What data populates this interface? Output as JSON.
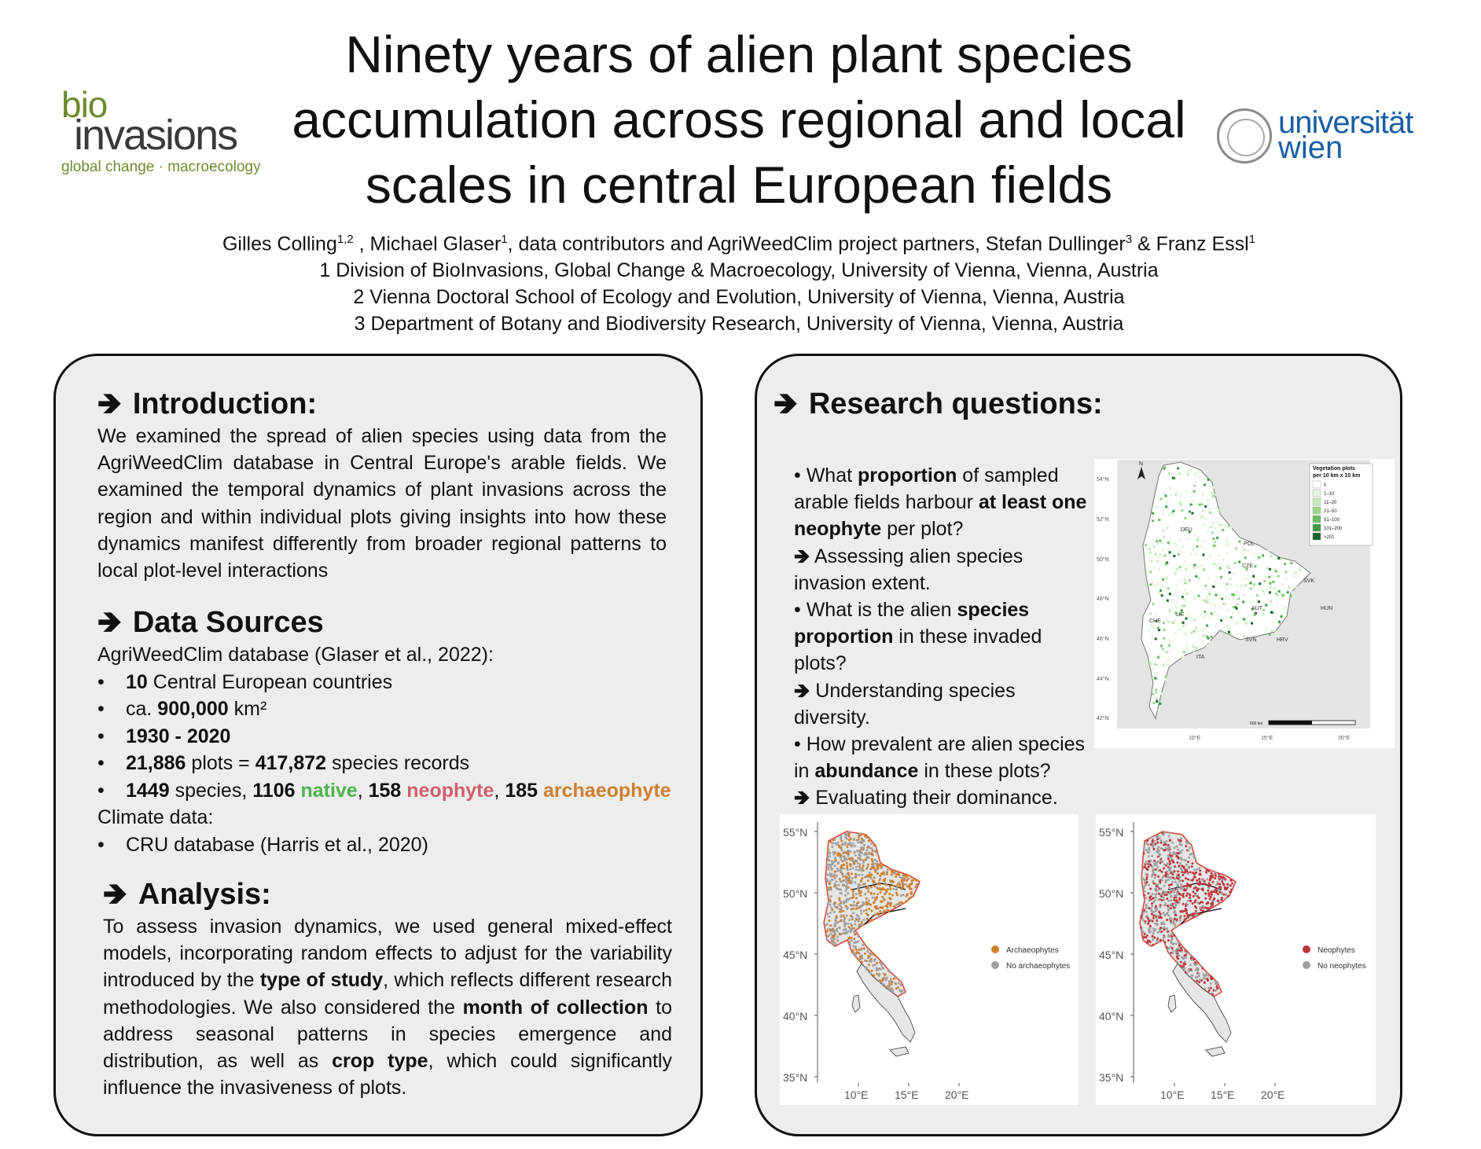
{
  "title_lines": [
    "Ninety years of alien plant species",
    "accumulation across regional and local",
    "scales in central European fields"
  ],
  "authors": {
    "line1_a": "Gilles Colling",
    "line1_sup_a": "1,2",
    "line1_b": " , Michael Glaser",
    "line1_sup_b": "1",
    "line1_c": ", data contributors and AgriWeedClim project partners, Stefan Dullinger",
    "line1_sup_c": "3",
    "line1_d": " & Franz Essl",
    "line1_sup_d": "1",
    "affil1": "1 Division of BioInvasions, Global Change & Macroecology, University of Vienna, Vienna, Austria",
    "affil2": "2 Vienna Doctoral School of Ecology and Evolution, University of Vienna, Vienna, Austria",
    "affil3": "3 Department of Botany and Biodiversity Research, University of Vienna, Vienna, Austria"
  },
  "logos": {
    "bio_top": "bio",
    "bio_main": "invasions",
    "bio_sub": "global change · macroecology",
    "uni_line1": "universität",
    "uni_line2": "wien"
  },
  "introduction": {
    "heading": "Introduction:",
    "text": "We examined the spread of alien species using data from the AgriWeedClim database in Central Europe's arable fields. We examined the temporal dynamics of plant invasions across the region and within individual plots giving insights into how these dynamics manifest differently from broader regional patterns to local plot-level interactions"
  },
  "data_sources": {
    "heading": "Data Sources",
    "db_line": "AgriWeedClim database (Glaser et al., 2022):",
    "b1_bold": "10",
    "b1_rest": " Central European countries",
    "b2_pre": "ca. ",
    "b2_bold": "900,000",
    "b2_rest": " km²",
    "b3_bold": "1930 - 2020",
    "b4_bold1": "21,886",
    "b4_mid": " plots = ",
    "b4_bold2": "417,872",
    "b4_rest": " species records",
    "b5_bold1": "1449",
    "b5_t1": " species, ",
    "b5_bold2": "1106",
    "b5_native": "native",
    "b5_t2": ", ",
    "b5_bold3": "158",
    "b5_neo": "neophyte",
    "b5_t3": ",  ",
    "b5_bold4": "185",
    "b5_arch": "archaeophyte",
    "climate_line": "Climate data:",
    "b6": "CRU database (Harris et al., 2020)"
  },
  "analysis": {
    "heading": "Analysis:",
    "t1": "To assess invasion dynamics, we used general mixed-effect models, incorporating random effects to adjust for the variability introduced by the ",
    "b1": "type of study",
    "t2": ", which reflects different research methodologies. We also considered the ",
    "b2": "month of collection",
    "t3": " to address seasonal patterns in species emergence and distribution, as well as ",
    "b3": "crop type",
    "t4": ", which could significantly influence the invasiveness of plots."
  },
  "research": {
    "heading": "Research questions:",
    "q1_a": "• What ",
    "q1_b": "proportion",
    "q1_c": " of sampled arable fields harbour ",
    "q1_d": "at least one neophyte",
    "q1_e": " per plot?",
    "a1": " Assessing alien species invasion extent.",
    "q2_a": "• What is the alien ",
    "q2_b": "species proportion",
    "q2_c": " in these invaded plots?",
    "a2": " Understanding species diversity.",
    "q3_a": "• How prevalent are alien species in ",
    "q3_b": "abundance",
    "q3_c": " in these plots?",
    "a3": " Evaluating their dominance."
  },
  "map_top": {
    "legend_title": "Vegetation plots per 10 km x 10 km",
    "legend_items": [
      "0",
      "1–10",
      "11–20",
      "21–50",
      "51–100",
      "101–200",
      ">201"
    ],
    "legend_colors": [
      "#ffffff",
      "#e5f4df",
      "#c6e8bc",
      "#9fd68f",
      "#6cbd62",
      "#3b9a45",
      "#17642a"
    ],
    "lat_labels": [
      "54°N",
      "52°N",
      "50°N",
      "48°N",
      "46°N",
      "44°N",
      "42°N"
    ],
    "lon_labels": [
      "10°E",
      "15°E",
      "20°E"
    ],
    "countries": [
      "DEU",
      "POL",
      "CZE",
      "SVK",
      "AUT",
      "HUN",
      "CHE",
      "LIE",
      "SVN",
      "HRV",
      "ITA"
    ],
    "north": "N",
    "scale": "600 km"
  },
  "map_arch": {
    "lat_labels": [
      "55°N",
      "50°N",
      "45°N",
      "40°N",
      "35°N"
    ],
    "lon_labels": [
      "10°E",
      "15°E",
      "20°E"
    ],
    "legend1": "Archaeophytes",
    "legend2": "No archaeophytes",
    "color1": "#cf7f2e",
    "color2": "#a0a0a0"
  },
  "map_neo": {
    "lat_labels": [
      "55°N",
      "50°N",
      "45°N",
      "40°N",
      "35°N"
    ],
    "lon_labels": [
      "10°E",
      "15°E",
      "20°E"
    ],
    "legend1": "Neophytes",
    "legend2": "No neophytes",
    "color1": "#c0343a",
    "color2": "#a0a0a0"
  }
}
